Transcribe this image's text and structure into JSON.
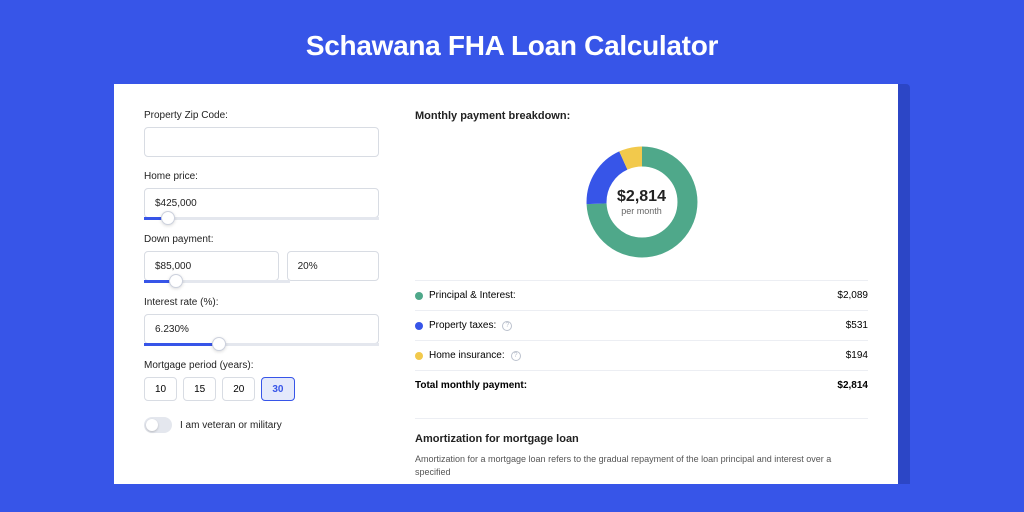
{
  "page_title": "Schawana FHA Loan Calculator",
  "form": {
    "zip": {
      "label": "Property Zip Code:",
      "value": ""
    },
    "home_price": {
      "label": "Home price:",
      "value": "$425,000",
      "slider_pct": 10
    },
    "down_payment": {
      "label": "Down payment:",
      "value": "$85,000",
      "pct_value": "20%",
      "slider_pct": 22
    },
    "interest_rate": {
      "label": "Interest rate (%):",
      "value": "6.230%",
      "slider_pct": 32
    },
    "mortgage_period": {
      "label": "Mortgage period (years):",
      "options": [
        "10",
        "15",
        "20",
        "30"
      ],
      "selected": "30"
    },
    "veteran": {
      "label": "I am veteran or military",
      "on": false
    }
  },
  "breakdown": {
    "title": "Monthly payment breakdown:",
    "donut": {
      "value": "$2,814",
      "sub": "per month",
      "slices": [
        {
          "color": "#4fa88a",
          "pct": 74.24
        },
        {
          "color": "#3755e8",
          "pct": 18.87
        },
        {
          "color": "#f2c94c",
          "pct": 6.89
        }
      ],
      "stroke_width": 20
    },
    "lines": [
      {
        "dot": "#4fa88a",
        "name": "Principal & Interest:",
        "value": "$2,089",
        "info": false
      },
      {
        "dot": "#3755e8",
        "name": "Property taxes:",
        "value": "$531",
        "info": true
      },
      {
        "dot": "#f2c94c",
        "name": "Home insurance:",
        "value": "$194",
        "info": true
      }
    ],
    "total": {
      "name": "Total monthly payment:",
      "value": "$2,814"
    }
  },
  "amortization": {
    "title": "Amortization for mortgage loan",
    "text": "Amortization for a mortgage loan refers to the gradual repayment of the loan principal and interest over a specified"
  }
}
